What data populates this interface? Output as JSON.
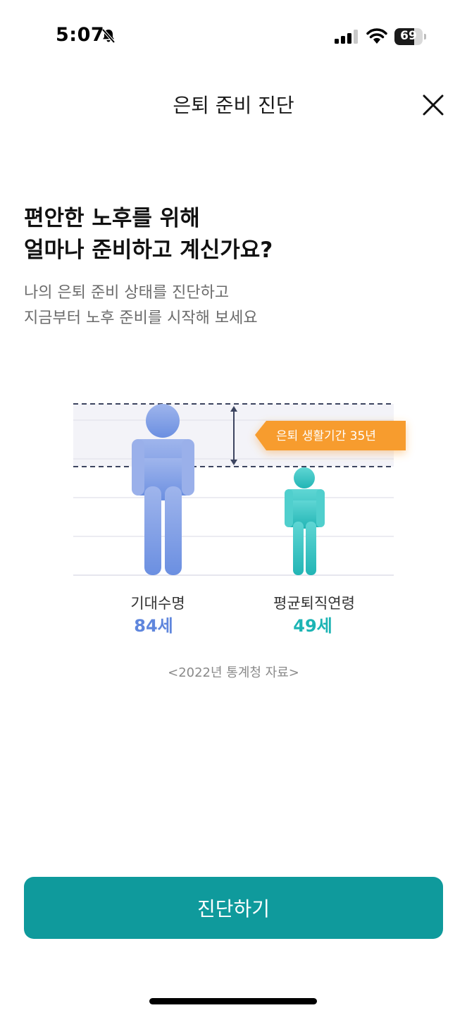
{
  "status_bar": {
    "time": "5:07",
    "battery_level": "69",
    "icons": [
      "bell-off-icon",
      "signal-icon",
      "wifi-icon",
      "battery-icon"
    ]
  },
  "nav": {
    "title": "은퇴 준비 진단",
    "close_icon": "close-icon"
  },
  "headline": {
    "line1": "편안한 노후를 위해",
    "line2": "얼마나 준비하고 계신가요?"
  },
  "subtext": {
    "line1": "나의 은퇴 준비 상태를 진단하고",
    "line2": "지금부터 노후 준비를 시작해 보세요"
  },
  "chart_data": {
    "type": "bar",
    "categories": [
      "기대수명",
      "평균퇴직연령"
    ],
    "values": [
      84,
      49
    ],
    "value_labels": [
      "84세",
      "49세"
    ],
    "annotation": "은퇴 생활기간 35년",
    "annotation_value": 35,
    "source": "<2022년 통계청 자료>"
  },
  "colors": {
    "life_expectancy": "#6f93e3",
    "retirement_age": "#2fbcbf",
    "badge": "#f79c2e",
    "accent": "#0f9a9c"
  },
  "cta": {
    "label": "진단하기"
  }
}
